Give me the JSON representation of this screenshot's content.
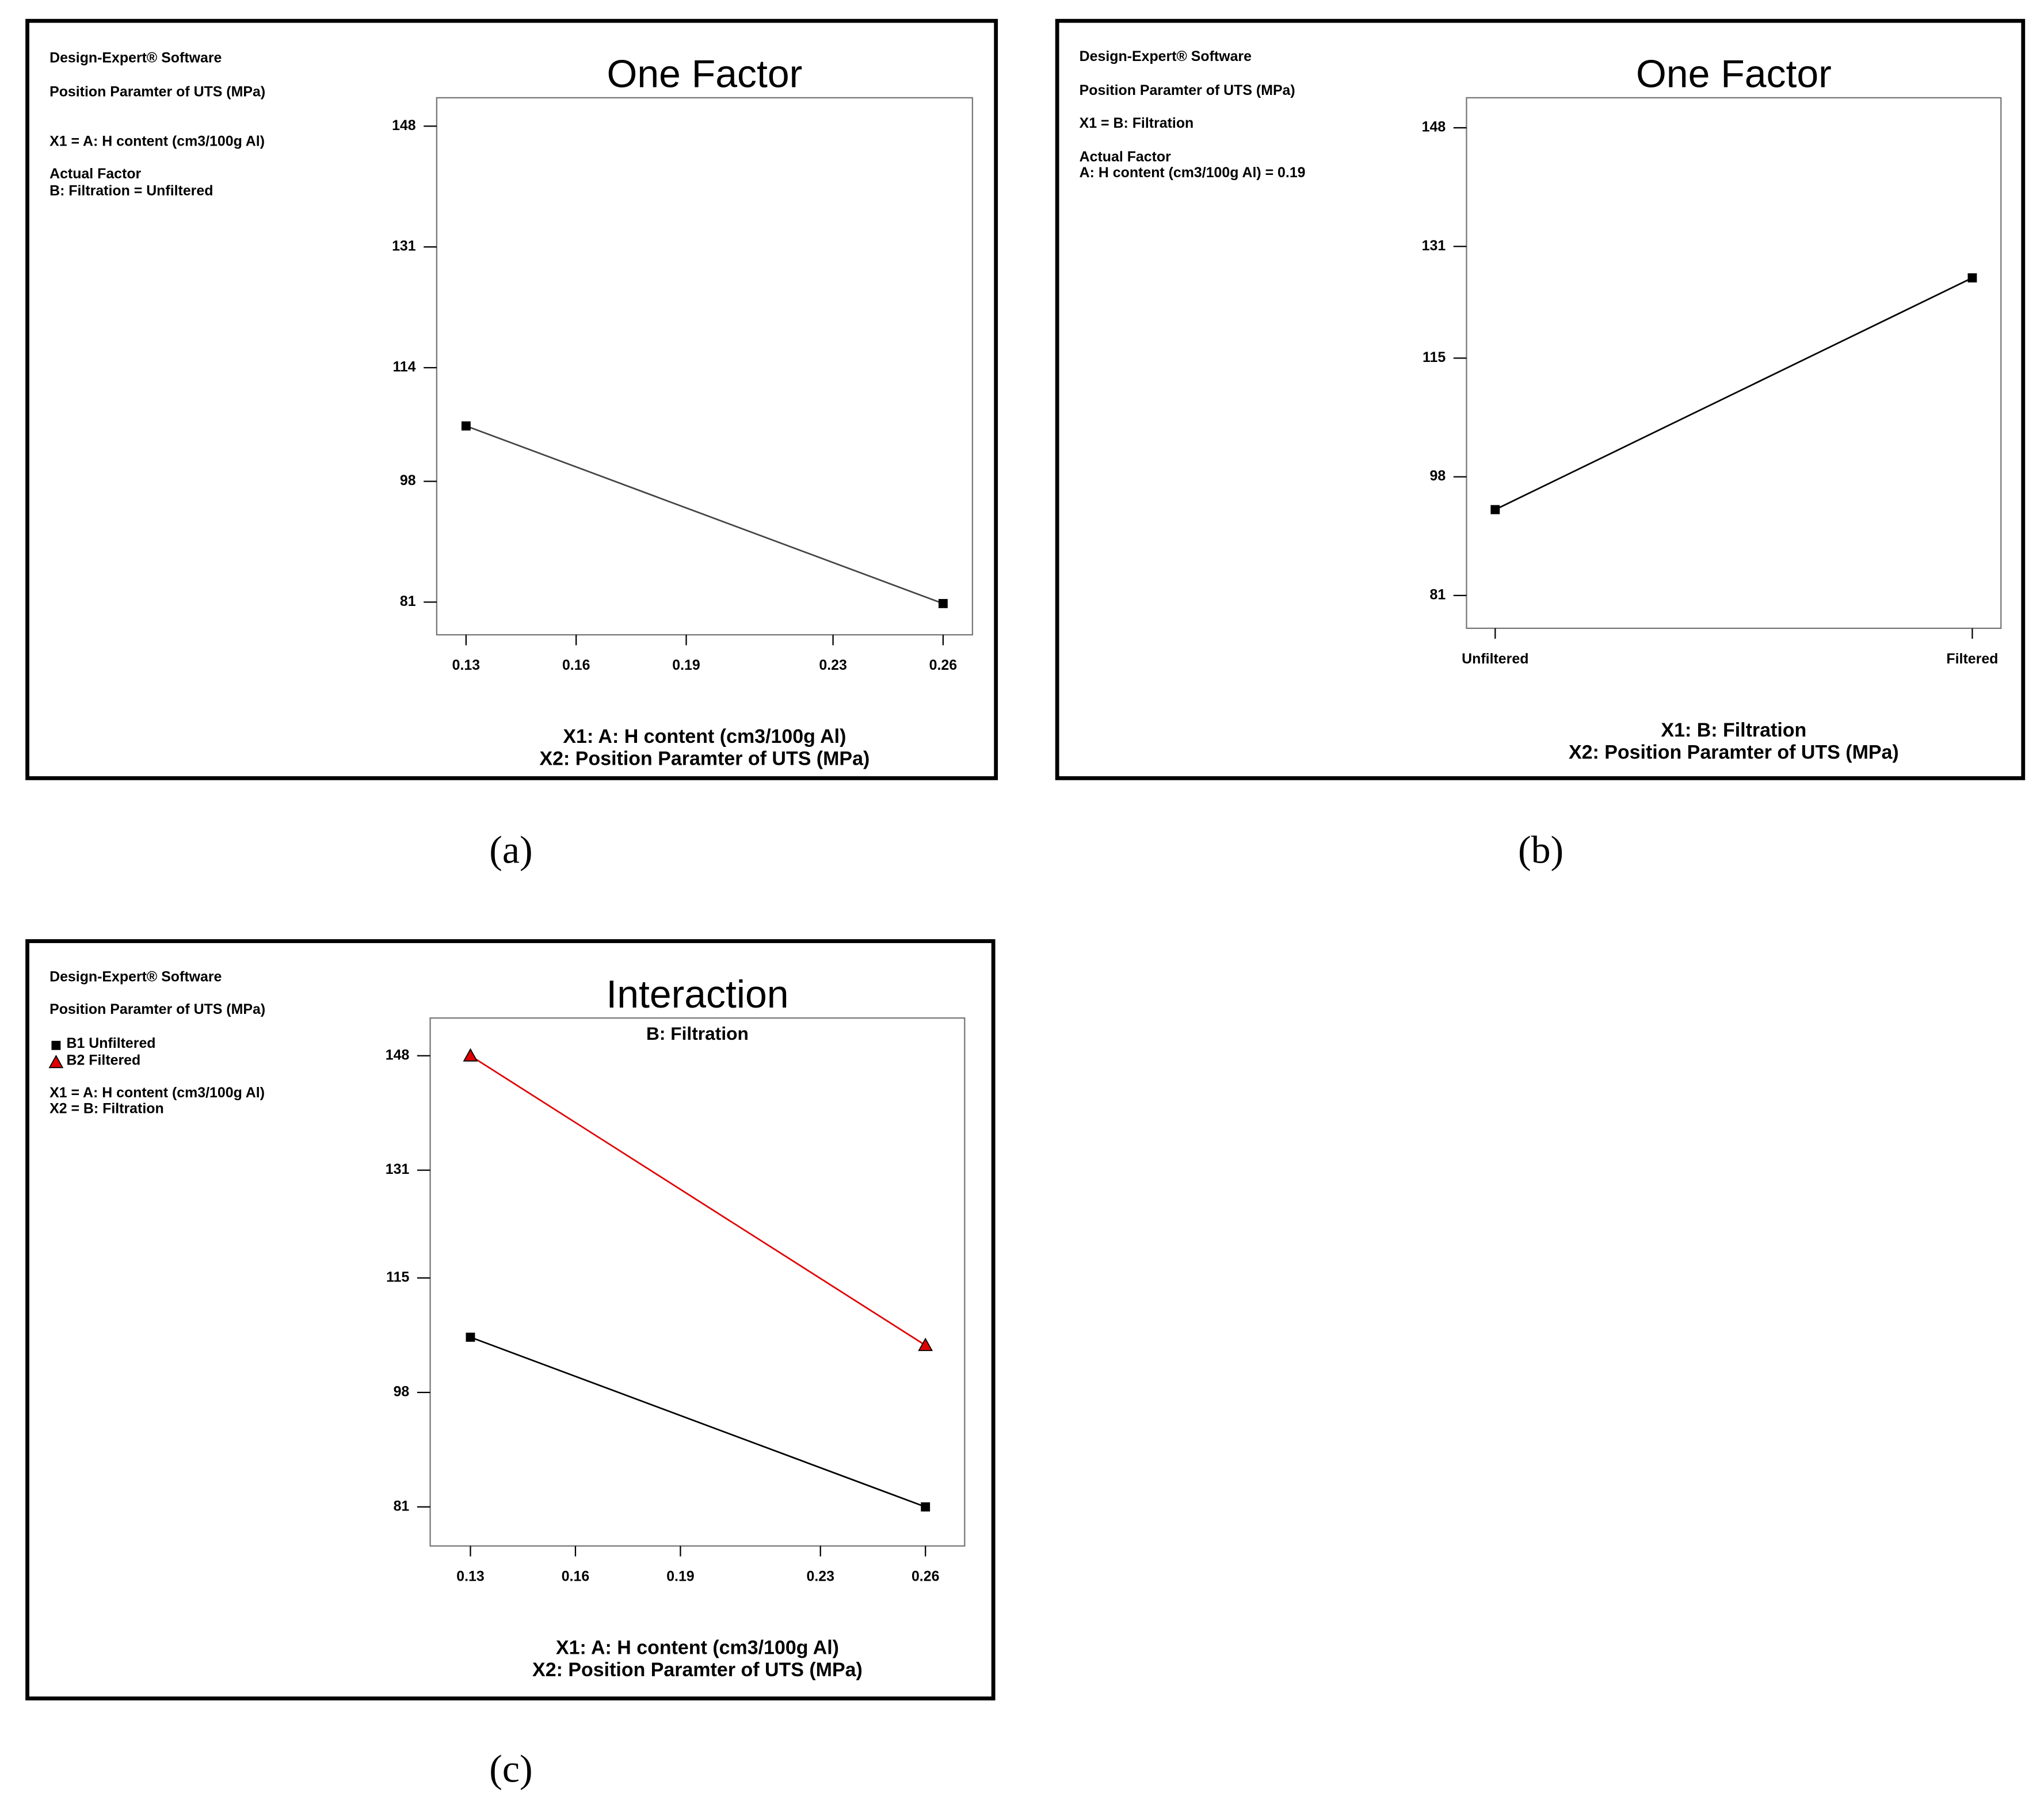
{
  "chart_data": [
    {
      "type": "line",
      "panel_label": "(a)",
      "title": "One Factor",
      "notes": [
        "Design-Expert® Software",
        "Position Paramter of UTS (MPa)",
        "X1 = A: H content (cm3/100g Al)",
        "Actual Factor",
        "B: Filtration = Unfiltered"
      ],
      "xlabel": [
        "X1: A: H content (cm3/100g Al)",
        "X2: Position Paramter of UTS (MPa)"
      ],
      "x": [
        0.13,
        0.26
      ],
      "series": [
        {
          "color": "#444444",
          "marker": "square",
          "values": [
            105.8,
            80.8
          ]
        }
      ],
      "xlim": [
        0.122,
        0.268
      ],
      "xticks": [
        0.13,
        0.16,
        0.19,
        0.23,
        0.26
      ],
      "ylim": [
        76.4,
        152
      ],
      "yticks": [
        81,
        98,
        114,
        131,
        148
      ]
    },
    {
      "type": "line",
      "panel_label": "(b)",
      "title": "One Factor",
      "notes": [
        "Design-Expert® Software",
        "Position Paramter of UTS (MPa)",
        "X1 = B: Filtration",
        "Actual Factor",
        "A: H content (cm3/100g Al) = 0.19"
      ],
      "xlabel": [
        "X1: B: Filtration",
        "X2: Position Paramter of UTS (MPa)"
      ],
      "categories": [
        "Unfiltered",
        "Filtered"
      ],
      "series": [
        {
          "color": "#000000",
          "marker": "square",
          "values": [
            93.3,
            126.5
          ]
        }
      ],
      "ylim": [
        76.3,
        152.3
      ],
      "yticks": [
        81,
        98,
        115,
        131,
        148
      ]
    },
    {
      "type": "line",
      "panel_label": "(c)",
      "title": "Interaction",
      "subtitle": "B: Filtration",
      "notes": [
        "Design-Expert® Software",
        "Position Paramter of UTS (MPa)",
        "X1 = A: H content (cm3/100g Al)",
        "X2 = B: Filtration"
      ],
      "xlabel": [
        "X1: A: H content (cm3/100g Al)",
        "X2: Position Paramter of UTS (MPa)"
      ],
      "x": [
        0.13,
        0.26
      ],
      "series": [
        {
          "name": "B1 Unfiltered",
          "color": "#000000",
          "marker": "square",
          "values": [
            106.2,
            81
          ]
        },
        {
          "name": "B2 Filtered",
          "color": "#e00000",
          "marker": "triangle",
          "values": [
            148,
            105
          ]
        }
      ],
      "xlim": [
        0.1185,
        0.2712
      ],
      "xticks": [
        0.13,
        0.16,
        0.19,
        0.23,
        0.26
      ],
      "ylim": [
        75.2,
        153.6
      ],
      "yticks": [
        81,
        98,
        115,
        131,
        148
      ]
    }
  ]
}
